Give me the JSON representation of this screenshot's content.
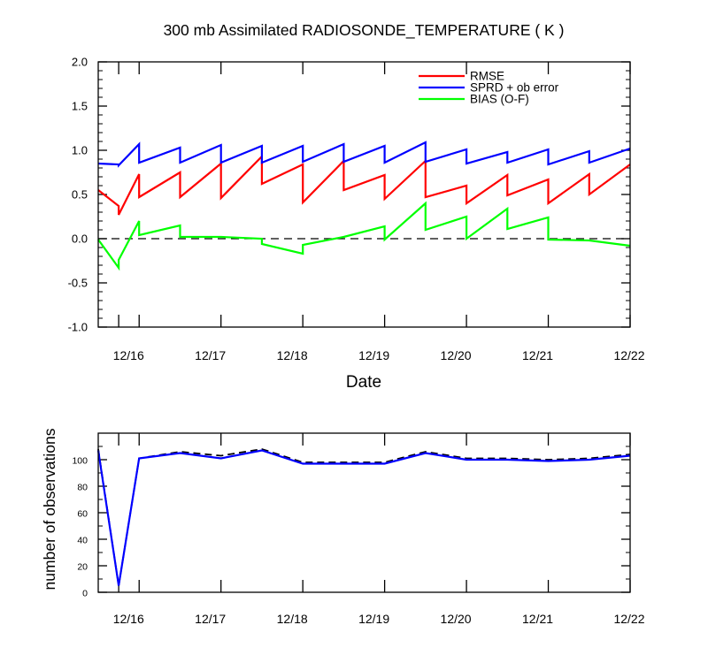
{
  "chart_data": [
    {
      "type": "line",
      "title": "300 mb Assimilated RADIOSONDE_TEMPERATURE ( K )",
      "xlabel": "Date",
      "ylabel": "",
      "x_ticks": [
        "12/16",
        "12/17",
        "12/18",
        "12/19",
        "12/20",
        "12/21",
        "12/22"
      ],
      "ylim": [
        -1.0,
        2.0
      ],
      "y_ticks": [
        "-1.0",
        "-0.5",
        "0.0",
        "0.5",
        "1.0",
        "1.5",
        "2.0"
      ],
      "legend_position": "top-right",
      "reference_line": 0,
      "series": [
        {
          "name": "RMSE",
          "color": "#ff0000",
          "points": [
            [
              15.5,
              0.55
            ],
            [
              15.75,
              0.37
            ],
            [
              15.75,
              0.27
            ],
            [
              16.0,
              0.73
            ],
            [
              16.0,
              0.47
            ],
            [
              16.5,
              0.75
            ],
            [
              16.5,
              0.47
            ],
            [
              17.0,
              0.85
            ],
            [
              17.0,
              0.46
            ],
            [
              17.5,
              0.93
            ],
            [
              17.5,
              0.62
            ],
            [
              18.0,
              0.84
            ],
            [
              18.0,
              0.41
            ],
            [
              18.5,
              0.88
            ],
            [
              18.5,
              0.55
            ],
            [
              19.0,
              0.72
            ],
            [
              19.0,
              0.45
            ],
            [
              19.5,
              0.88
            ],
            [
              19.5,
              0.47
            ],
            [
              20.0,
              0.6
            ],
            [
              20.0,
              0.4
            ],
            [
              20.5,
              0.72
            ],
            [
              20.5,
              0.49
            ],
            [
              21.0,
              0.67
            ],
            [
              21.0,
              0.4
            ],
            [
              21.5,
              0.73
            ],
            [
              21.5,
              0.5
            ],
            [
              22.0,
              0.84
            ]
          ]
        },
        {
          "name": "SPRD + ob error",
          "color": "#0000ff",
          "points": [
            [
              15.5,
              0.85
            ],
            [
              15.75,
              0.84
            ],
            [
              15.75,
              0.83
            ],
            [
              16.0,
              1.07
            ],
            [
              16.0,
              0.86
            ],
            [
              16.5,
              1.03
            ],
            [
              16.5,
              0.86
            ],
            [
              17.0,
              1.06
            ],
            [
              17.0,
              0.86
            ],
            [
              17.5,
              1.05
            ],
            [
              17.5,
              0.86
            ],
            [
              18.0,
              1.05
            ],
            [
              18.0,
              0.87
            ],
            [
              18.5,
              1.07
            ],
            [
              18.5,
              0.87
            ],
            [
              19.0,
              1.05
            ],
            [
              19.0,
              0.86
            ],
            [
              19.5,
              1.09
            ],
            [
              19.5,
              0.87
            ],
            [
              20.0,
              1.01
            ],
            [
              20.0,
              0.85
            ],
            [
              20.5,
              0.98
            ],
            [
              20.5,
              0.86
            ],
            [
              21.0,
              1.01
            ],
            [
              21.0,
              0.84
            ],
            [
              21.5,
              0.99
            ],
            [
              21.5,
              0.86
            ],
            [
              22.0,
              1.02
            ]
          ]
        },
        {
          "name": "BIAS (O-F)",
          "color": "#00ff00",
          "points": [
            [
              15.5,
              -0.01
            ],
            [
              15.75,
              -0.33
            ],
            [
              15.75,
              -0.24
            ],
            [
              16.0,
              0.2
            ],
            [
              16.0,
              0.04
            ],
            [
              16.5,
              0.15
            ],
            [
              16.5,
              0.02
            ],
            [
              17.0,
              0.02
            ],
            [
              17.5,
              0.0
            ],
            [
              17.5,
              -0.06
            ],
            [
              18.0,
              -0.17
            ],
            [
              18.0,
              -0.07
            ],
            [
              18.5,
              0.02
            ],
            [
              19.0,
              0.14
            ],
            [
              19.0,
              -0.01
            ],
            [
              19.5,
              0.4
            ],
            [
              19.5,
              0.1
            ],
            [
              20.0,
              0.25
            ],
            [
              20.0,
              0.0
            ],
            [
              20.5,
              0.34
            ],
            [
              20.5,
              0.11
            ],
            [
              21.0,
              0.24
            ],
            [
              21.0,
              -0.01
            ],
            [
              21.5,
              -0.02
            ],
            [
              22.0,
              -0.08
            ]
          ]
        }
      ]
    },
    {
      "type": "line",
      "title": "",
      "xlabel": "",
      "ylabel": "number of observations",
      "x_ticks": [
        "12/16",
        "12/17",
        "12/18",
        "12/19",
        "12/20",
        "12/21",
        "12/22"
      ],
      "ylim": [
        0,
        120
      ],
      "y_ticks": [
        "0",
        "20",
        "40",
        "60",
        "80",
        "100"
      ],
      "series": [
        {
          "style": "dashed",
          "color": "#000000",
          "points": [
            [
              15.5,
              108
            ],
            [
              15.75,
              5
            ],
            [
              16.0,
              101
            ],
            [
              16.5,
              106
            ],
            [
              17.0,
              103
            ],
            [
              17.5,
              108
            ],
            [
              18.0,
              98
            ],
            [
              18.5,
              98
            ],
            [
              19.0,
              98
            ],
            [
              19.5,
              106
            ],
            [
              20.0,
              101
            ],
            [
              20.5,
              101
            ],
            [
              21.0,
              100
            ],
            [
              21.5,
              101
            ],
            [
              22.0,
              104
            ]
          ]
        },
        {
          "style": "solid",
          "color": "#0000ff",
          "points": [
            [
              15.5,
              107
            ],
            [
              15.75,
              5
            ],
            [
              16.0,
              101
            ],
            [
              16.5,
              105
            ],
            [
              17.0,
              101
            ],
            [
              17.5,
              107
            ],
            [
              18.0,
              97
            ],
            [
              18.5,
              97
            ],
            [
              19.0,
              97
            ],
            [
              19.5,
              105
            ],
            [
              20.0,
              100
            ],
            [
              20.5,
              100
            ],
            [
              21.0,
              99
            ],
            [
              21.5,
              100
            ],
            [
              22.0,
              103
            ]
          ]
        }
      ]
    }
  ]
}
